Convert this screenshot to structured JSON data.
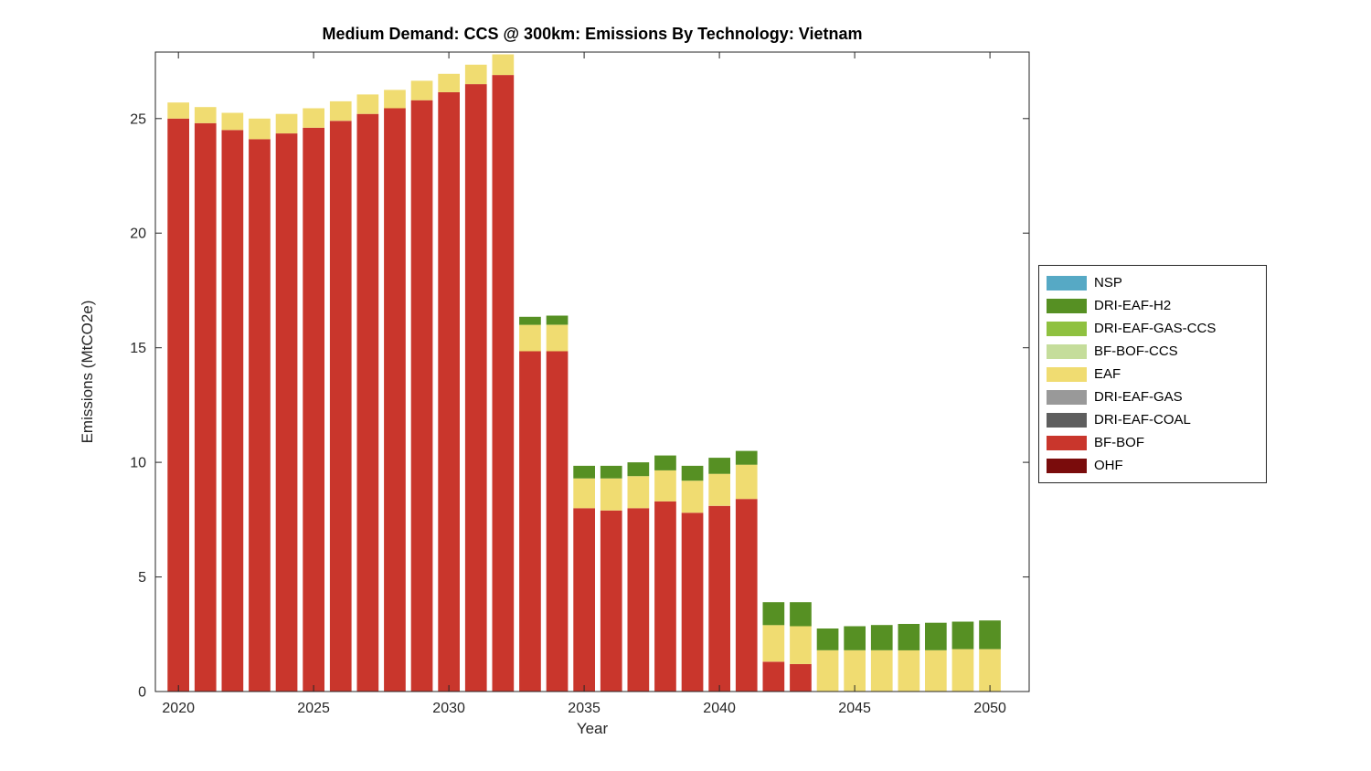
{
  "chart_data": {
    "type": "bar",
    "stacked": true,
    "title": "Medium Demand: CCS @ 300km: Emissions By Technology: Vietnam",
    "xlabel": "Year",
    "ylabel": "Emissions (MtCO2e)",
    "ylim": [
      0,
      27.9
    ],
    "yticks": [
      0,
      5,
      10,
      15,
      20,
      25
    ],
    "xticks": [
      2020,
      2025,
      2030,
      2035,
      2040,
      2045,
      2050
    ],
    "grid": false,
    "legend_position": "right-outside",
    "x": [
      2020,
      2021,
      2022,
      2023,
      2024,
      2025,
      2026,
      2027,
      2028,
      2029,
      2030,
      2031,
      2032,
      2033,
      2034,
      2035,
      2036,
      2037,
      2038,
      2039,
      2040,
      2041,
      2042,
      2043,
      2044,
      2045,
      2046,
      2047,
      2048,
      2049,
      2050
    ],
    "series": [
      {
        "name": "BF-BOF",
        "color": "#c9362c",
        "values": [
          25.0,
          24.8,
          24.5,
          24.1,
          24.35,
          24.6,
          24.9,
          25.2,
          25.45,
          25.8,
          26.15,
          26.5,
          26.9,
          14.85,
          14.85,
          8.0,
          7.9,
          8.0,
          8.3,
          7.8,
          8.1,
          8.4,
          1.3,
          1.2,
          0,
          0,
          0,
          0,
          0,
          0,
          0
        ]
      },
      {
        "name": "EAF",
        "color": "#f0dc71",
        "values": [
          0.7,
          0.7,
          0.75,
          0.9,
          0.85,
          0.85,
          0.85,
          0.85,
          0.8,
          0.85,
          0.8,
          0.85,
          0.9,
          1.15,
          1.15,
          1.3,
          1.4,
          1.4,
          1.35,
          1.4,
          1.4,
          1.5,
          1.6,
          1.65,
          1.8,
          1.8,
          1.8,
          1.8,
          1.8,
          1.85,
          1.85
        ]
      },
      {
        "name": "DRI-EAF-H2",
        "color": "#569023",
        "values": [
          0,
          0,
          0,
          0,
          0,
          0,
          0,
          0,
          0,
          0,
          0,
          0,
          0,
          0.35,
          0.4,
          0.55,
          0.55,
          0.6,
          0.65,
          0.65,
          0.7,
          0.6,
          1.0,
          1.05,
          0.95,
          1.05,
          1.1,
          1.15,
          1.2,
          1.2,
          1.25
        ]
      }
    ],
    "legend": [
      {
        "label": "NSP",
        "color": "#56a9c5"
      },
      {
        "label": "DRI-EAF-H2",
        "color": "#569023"
      },
      {
        "label": "DRI-EAF-GAS-CCS",
        "color": "#8fc140"
      },
      {
        "label": "BF-BOF-CCS",
        "color": "#c5dd9b"
      },
      {
        "label": "EAF",
        "color": "#f0dc71"
      },
      {
        "label": "DRI-EAF-GAS",
        "color": "#999999"
      },
      {
        "label": "DRI-EAF-COAL",
        "color": "#5e5e5e"
      },
      {
        "label": "BF-BOF",
        "color": "#c9362c"
      },
      {
        "label": "OHF",
        "color": "#7a0c0c"
      }
    ]
  }
}
